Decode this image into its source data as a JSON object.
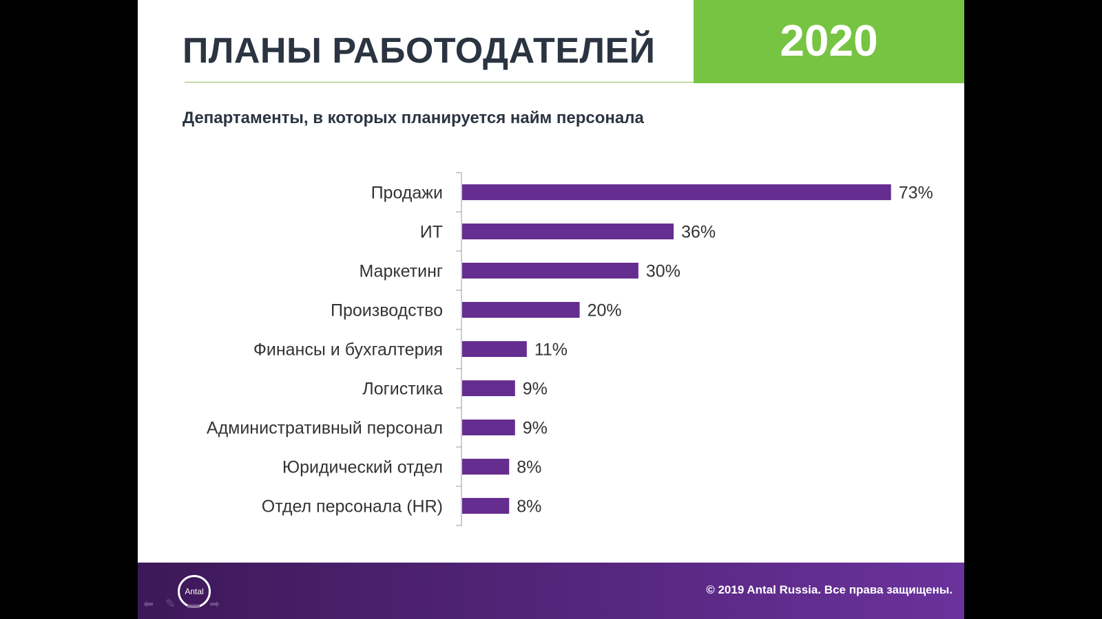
{
  "header": {
    "title": "ПЛАНЫ РАБОТОДАТЕЛЕЙ",
    "year": "2020",
    "subtitle": "Департаменты, в которых планируется найм персонала"
  },
  "footer": {
    "copyright": "© 2019 Antal Russia. Все права защищены.",
    "logo_text": "Antal"
  },
  "colors": {
    "bar": "#652d90",
    "accent_green": "#76c442",
    "footer": "#4a2070"
  },
  "chart_data": {
    "type": "bar",
    "orientation": "horizontal",
    "categories": [
      "Продажи",
      "ИТ",
      "Маркетинг",
      "Производство",
      "Финансы и бухгалтерия",
      "Логистика",
      "Административный персонал",
      "Юридический отдел",
      "Отдел персонала (HR)"
    ],
    "values": [
      73,
      36,
      30,
      20,
      11,
      9,
      9,
      8,
      8
    ],
    "value_labels": [
      "73%",
      "36%",
      "30%",
      "20%",
      "11%",
      "9%",
      "9%",
      "8%",
      "8%"
    ],
    "unit": "%",
    "grid": false,
    "legend": "none"
  }
}
